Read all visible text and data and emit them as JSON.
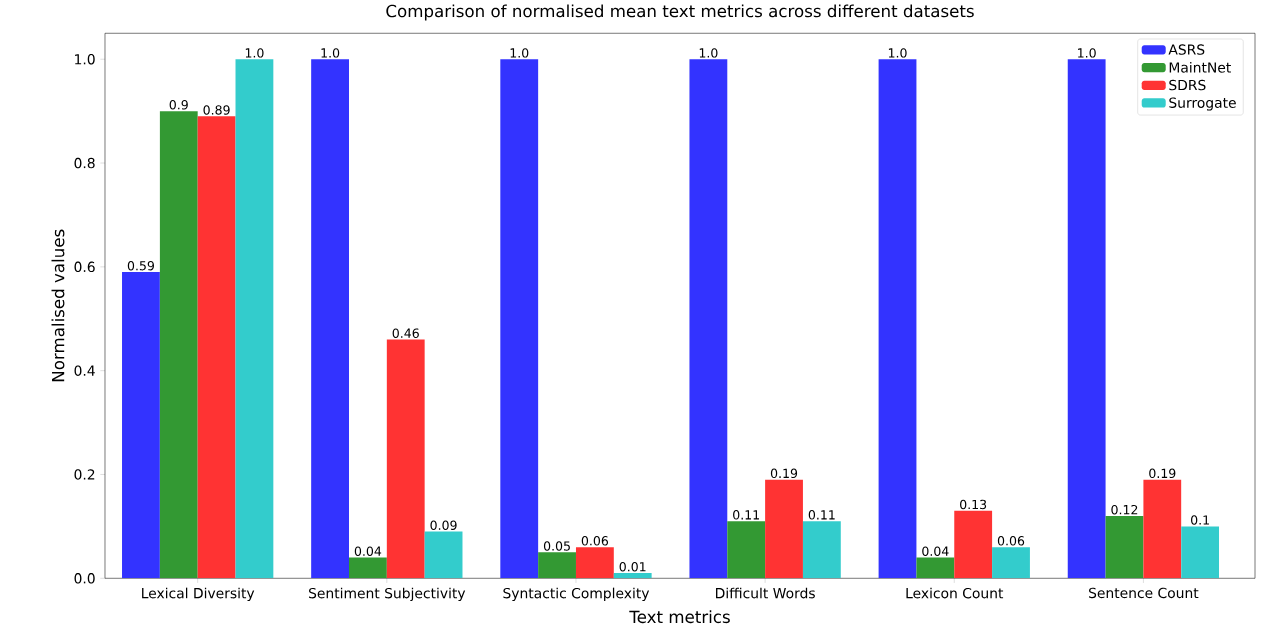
{
  "chart_data": {
    "type": "bar",
    "title": "Comparison of normalised mean text metrics across different datasets",
    "xlabel": "Text metrics",
    "ylabel": "Normalised values",
    "categories": [
      "Lexical Diversity",
      "Sentiment Subjectivity",
      "Syntactic Complexity",
      "Difficult Words",
      "Lexicon Count",
      "Sentence Count"
    ],
    "series": [
      {
        "name": "ASRS",
        "color": "#3333ff",
        "values": [
          0.59,
          1.0,
          1.0,
          1.0,
          1.0,
          1.0
        ],
        "value_labels": [
          "0.59",
          "1.0",
          "1.0",
          "1.0",
          "1.0",
          "1.0"
        ]
      },
      {
        "name": "MaintNet",
        "color": "#339933",
        "values": [
          0.9,
          0.04,
          0.05,
          0.11,
          0.04,
          0.12
        ],
        "value_labels": [
          "0.9",
          "0.04",
          "0.05",
          "0.11",
          "0.04",
          "0.12"
        ]
      },
      {
        "name": "SDRS",
        "color": "#ff3333",
        "values": [
          0.89,
          0.46,
          0.06,
          0.19,
          0.13,
          0.19
        ],
        "value_labels": [
          "0.89",
          "0.46",
          "0.06",
          "0.19",
          "0.13",
          "0.19"
        ]
      },
      {
        "name": "Surrogate",
        "color": "#33cccc",
        "values": [
          1.0,
          0.09,
          0.01,
          0.11,
          0.06,
          0.1
        ],
        "value_labels": [
          "1.0",
          "0.09",
          "0.01",
          "0.11",
          "0.06",
          "0.1"
        ]
      }
    ],
    "ylim": [
      0,
      1.05
    ],
    "yticks": [
      {
        "value": 0,
        "label": "0.0"
      },
      {
        "value": 0.2,
        "label": "0.2"
      },
      {
        "value": 0.4,
        "label": "0.4"
      },
      {
        "value": 0.6,
        "label": "0.6"
      },
      {
        "value": 0.8,
        "label": "0.8"
      },
      {
        "value": 1.0,
        "label": "1.0"
      }
    ],
    "legend": "top right",
    "grid": false
  }
}
